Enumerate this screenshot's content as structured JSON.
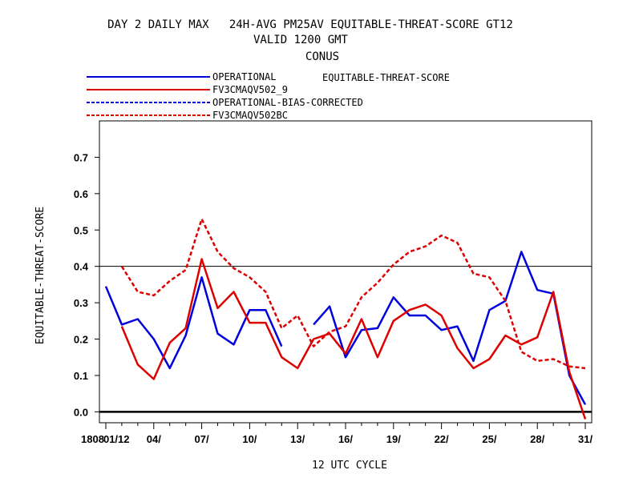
{
  "chart_data": {
    "type": "line",
    "title": "DAY 2 DAILY MAX   24H-AVG PM25AV EQUITABLE-THREAT-SCORE GT12",
    "subtitle": "VALID 1200 GMT",
    "region": "CONUS",
    "legend_title": "EQUITABLE-THREAT-SCORE",
    "xlabel": "12 UTC CYCLE",
    "ylabel": "EQUITABLE-THREAT-SCORE",
    "x_axis_prefix": "1808",
    "x_tick_labels": [
      "01/12",
      "04/",
      "07/",
      "10/",
      "13/",
      "16/",
      "19/",
      "22/",
      "25/",
      "28/",
      "31/"
    ],
    "x_tick_days": [
      1,
      4,
      7,
      10,
      13,
      16,
      19,
      22,
      25,
      28,
      31
    ],
    "xlim": [
      0.6,
      31.4
    ],
    "ylim": [
      -0.03,
      0.8
    ],
    "y_ticks": [
      0.0,
      0.1,
      0.2,
      0.3,
      0.4,
      0.5,
      0.6,
      0.7
    ],
    "y_tick_labels": [
      "0.0",
      "0.1",
      "0.2",
      "0.3",
      "0.4",
      "0.5",
      "0.6",
      "0.7"
    ],
    "reference_lines": [
      0.0,
      0.4
    ],
    "legend_placement": "top-left, above plot",
    "series": [
      {
        "name": "OPERATIONAL",
        "color": "#0000dd",
        "dash": "solid",
        "x": [
          1,
          2,
          3,
          4,
          5,
          6,
          7,
          8,
          9,
          10,
          11,
          12,
          13,
          14,
          15,
          16,
          17,
          18,
          19,
          20,
          21,
          22,
          23,
          24,
          25,
          26,
          27,
          28,
          29,
          30,
          31
        ],
        "values": [
          0.345,
          0.24,
          0.255,
          0.2,
          0.12,
          0.21,
          0.37,
          0.215,
          0.185,
          0.28,
          0.28,
          0.18,
          null,
          0.24,
          0.29,
          0.15,
          0.225,
          0.23,
          0.315,
          0.265,
          0.265,
          0.225,
          0.235,
          0.14,
          0.28,
          0.305,
          0.44,
          0.335,
          0.325,
          0.1,
          0.02
        ]
      },
      {
        "name": "FV3CMAQV502_9",
        "color": "#dd0000",
        "dash": "solid",
        "x": [
          1,
          2,
          3,
          4,
          5,
          6,
          7,
          8,
          9,
          10,
          11,
          12,
          13,
          14,
          15,
          16,
          17,
          18,
          19,
          20,
          21,
          22,
          23,
          24,
          25,
          26,
          27,
          28,
          29,
          30,
          31
        ],
        "values": [
          null,
          0.235,
          0.13,
          0.09,
          0.19,
          0.23,
          0.42,
          0.285,
          0.33,
          0.245,
          0.245,
          0.15,
          0.12,
          0.2,
          0.215,
          0.16,
          0.255,
          0.15,
          0.25,
          0.28,
          0.295,
          0.265,
          0.175,
          0.12,
          0.145,
          0.21,
          0.185,
          0.205,
          0.33,
          0.11,
          -0.02
        ]
      },
      {
        "name": "OPERATIONAL-BIAS-CORRECTED",
        "color": "#0000dd",
        "dash": "dashed",
        "x": [],
        "values": []
      },
      {
        "name": "FV3CMAQV502BC",
        "color": "#dd0000",
        "dash": "dashed",
        "x": [
          1,
          2,
          3,
          4,
          5,
          6,
          7,
          8,
          9,
          10,
          11,
          12,
          13,
          14,
          15,
          16,
          17,
          18,
          19,
          20,
          21,
          22,
          23,
          24,
          25,
          26,
          27,
          28,
          29,
          30,
          31
        ],
        "values": [
          null,
          0.4,
          0.33,
          0.32,
          0.36,
          0.39,
          0.53,
          0.44,
          0.395,
          0.37,
          0.33,
          0.23,
          0.265,
          0.18,
          0.22,
          0.235,
          0.315,
          0.355,
          0.405,
          0.44,
          0.455,
          0.485,
          0.465,
          0.38,
          0.37,
          0.305,
          0.165,
          0.14,
          0.145,
          0.125,
          0.12
        ]
      }
    ]
  }
}
